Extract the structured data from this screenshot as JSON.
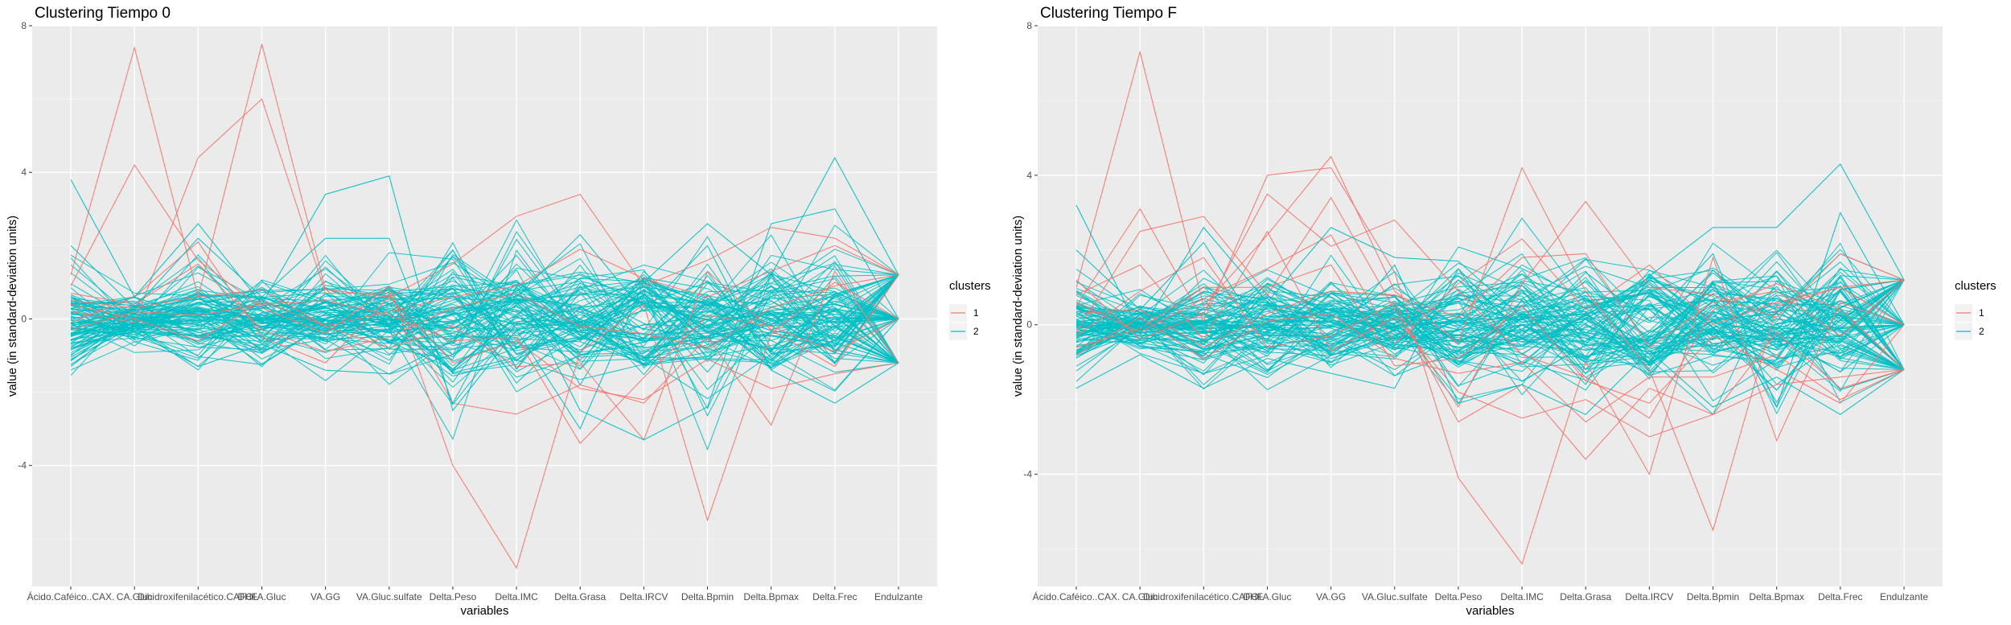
{
  "chart_data": [
    {
      "type": "line",
      "subtype": "parallel-coordinates",
      "title": "Clustering Tiempo 0",
      "xlabel": "variables",
      "ylabel": "value (in standard-deviation units)",
      "ylim": [
        -7.3,
        8.0
      ],
      "yticks": [
        -4,
        0,
        4,
        8
      ],
      "categories": [
        "Ácido.Caféico..CAX.",
        "CA.Gluc",
        "Dihidroxifenilacético.CAFOL",
        "DHFA.Gluc",
        "VA.GG",
        "VA.Gluc.sulfate",
        "Delta.Peso",
        "Delta.IMC",
        "Delta.Grasa",
        "Delta.IRCV",
        "Delta.Bpmin",
        "Delta.Bpmax",
        "Delta.Frec",
        "Endulzante"
      ],
      "grid": true,
      "legend": {
        "title": "clusters",
        "placement": "right",
        "entries": [
          "1",
          "2"
        ]
      },
      "colors": {
        "1": "#F8766D",
        "2": "#00BFC4"
      },
      "series": [
        {
          "name": "1",
          "values": [
            1.2,
            7.4,
            0.6,
            7.5,
            0.8,
            0.6,
            1.5,
            2.8,
            3.4,
            0.9,
            1.6,
            2.5,
            2.2,
            1.2
          ]
        },
        {
          "name": "1",
          "values": [
            0.9,
            4.2,
            1.6,
            0.3,
            -0.4,
            0.9,
            -4.0,
            -6.8,
            -0.9,
            0.4,
            -5.5,
            -0.4,
            1.0,
            0.0
          ]
        },
        {
          "name": "1",
          "values": [
            0.2,
            -0.1,
            4.4,
            6.0,
            0.7,
            0.7,
            -2.3,
            -2.6,
            -1.8,
            -2.3,
            -0.5,
            -2.9,
            1.3,
            -1.2
          ]
        },
        {
          "name": "1",
          "values": [
            0.5,
            0.3,
            0.6,
            0.8,
            -0.2,
            0.2,
            0.6,
            0.9,
            1.9,
            1.1,
            0.6,
            1.3,
            2.0,
            1.2
          ]
        },
        {
          "name": "1",
          "values": [
            -0.3,
            0.2,
            0.1,
            0.4,
            0.5,
            0.1,
            -0.6,
            -0.5,
            -3.4,
            -1.6,
            0.1,
            -0.2,
            -0.9,
            0.0
          ]
        },
        {
          "name": "1",
          "values": [
            0.7,
            0.4,
            1.5,
            -0.3,
            -0.9,
            -0.5,
            0.3,
            0.7,
            -0.2,
            -0.4,
            -0.8,
            0.3,
            0.9,
            1.2
          ]
        },
        {
          "name": "1",
          "values": [
            -0.1,
            0.6,
            2.1,
            -0.5,
            -1.2,
            0.6,
            -1.2,
            -0.6,
            -1.9,
            -2.2,
            -1.1,
            -1.9,
            -1.5,
            -1.2
          ]
        },
        {
          "name": "1",
          "values": [
            0.4,
            0.0,
            -0.6,
            0.5,
            -0.2,
            -0.8,
            -0.2,
            -1.3,
            -1.2,
            -3.3,
            1.3,
            -0.3,
            -1.3,
            1.2
          ]
        }
      ]
    },
    {
      "type": "line",
      "subtype": "parallel-coordinates",
      "title": "Clustering Tiempo F",
      "xlabel": "variables",
      "ylabel": "value (in standard-deviation units)",
      "ylim": [
        -7.0,
        8.0
      ],
      "yticks": [
        -4,
        0,
        4,
        8
      ],
      "categories": [
        "Ácido.Caféico..CAX.",
        "CA.Gluc",
        "Dihidroxifenilacético.CAFOL",
        "DHFA.Gluc",
        "VA.GG",
        "VA.Gluc.sulfate",
        "Delta.Peso",
        "Delta.IMC",
        "Delta.Grasa",
        "Delta.IRCV",
        "Delta.Bpmin",
        "Delta.Bpmax",
        "Delta.Frec",
        "Endulzante"
      ],
      "grid": true,
      "legend": {
        "title": "clusters",
        "placement": "right",
        "entries": [
          "1",
          "2"
        ]
      },
      "colors": {
        "1": "#F8766D",
        "2": "#00BFC4"
      },
      "series": [
        {
          "name": "1",
          "values": [
            1.0,
            7.3,
            0.5,
            2.4,
            4.5,
            0.9,
            -0.5,
            4.2,
            0.9,
            -1.2,
            -5.5,
            0.5,
            1.0,
            1.2
          ]
        },
        {
          "name": "1",
          "values": [
            0.5,
            3.1,
            0.1,
            4.0,
            4.2,
            1.4,
            -4.1,
            -6.4,
            -1.0,
            -4.0,
            1.8,
            -3.1,
            0.6,
            0.0
          ]
        },
        {
          "name": "1",
          "values": [
            -0.2,
            2.5,
            2.9,
            0.8,
            3.4,
            0.4,
            -2.2,
            1.1,
            3.3,
            1.0,
            0.8,
            0.2,
            1.9,
            1.2
          ]
        },
        {
          "name": "1",
          "values": [
            0.8,
            1.6,
            -0.4,
            2.5,
            -0.7,
            0.2,
            -1.8,
            -2.5,
            -2.0,
            -3.0,
            -2.4,
            -0.2,
            -1.7,
            -1.2
          ]
        },
        {
          "name": "1",
          "values": [
            -0.6,
            -0.1,
            1.0,
            1.0,
            1.6,
            -1.1,
            -0.9,
            0.5,
            -1.5,
            -2.1,
            -0.3,
            -1.2,
            -2.1,
            0.0
          ]
        },
        {
          "name": "1",
          "values": [
            0.3,
            0.4,
            -0.6,
            0.3,
            0.9,
            0.8,
            0.2,
            1.8,
            1.9,
            -0.6,
            0.6,
            0.9,
            -0.3,
            1.2
          ]
        },
        {
          "name": "1",
          "values": [
            1.2,
            -0.4,
            0.3,
            3.5,
            2.1,
            2.8,
            0.9,
            -0.8,
            -1.4,
            -2.5,
            0.4,
            1.1,
            0.4,
            -1.2
          ]
        },
        {
          "name": "1",
          "values": [
            -0.3,
            0.9,
            1.8,
            -0.6,
            -0.3,
            0.6,
            -2.6,
            -1.6,
            -3.6,
            -1.7,
            -2.4,
            -1.6,
            -1.4,
            -1.2
          ]
        },
        {
          "name": "1",
          "values": [
            0.6,
            -0.2,
            0.7,
            1.5,
            2.4,
            -0.5,
            1.1,
            2.3,
            0.4,
            1.6,
            0.0,
            0.6,
            1.0,
            0.0
          ]
        },
        {
          "name": "1",
          "values": [
            -0.8,
            0.2,
            -0.9,
            0.1,
            0.3,
            -0.9,
            -1.3,
            -1.0,
            -2.6,
            -1.4,
            -1.4,
            -0.8,
            -2.0,
            -1.2
          ]
        }
      ]
    }
  ]
}
